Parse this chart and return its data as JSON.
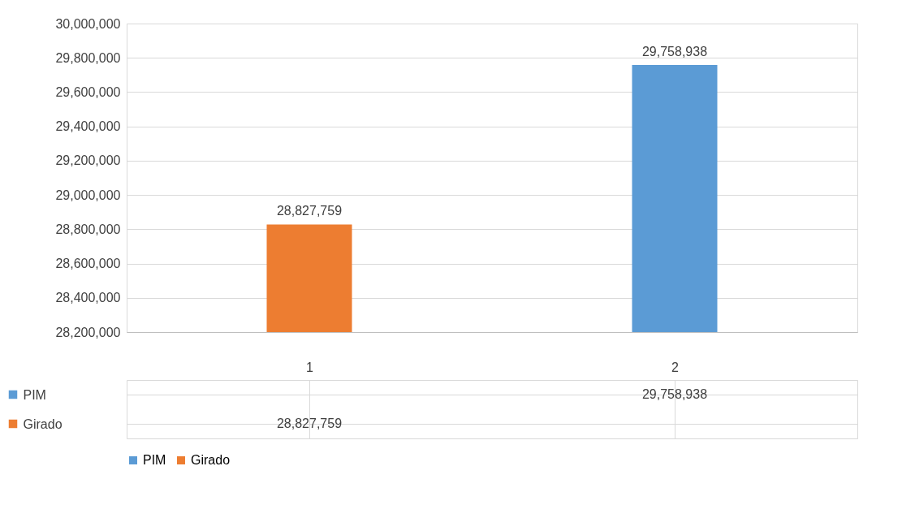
{
  "chart_data": {
    "type": "bar",
    "categories": [
      "1",
      "2"
    ],
    "series": [
      {
        "name": "PIM",
        "color": "#5b9bd5",
        "values": [
          null,
          29758938
        ],
        "value_labels": [
          null,
          "29,758,938"
        ]
      },
      {
        "name": "Girado",
        "color": "#ed7d31",
        "values": [
          28827759,
          null
        ],
        "value_labels": [
          "28,827,759",
          null
        ]
      }
    ],
    "ylim": [
      28200000,
      30000000
    ],
    "yticks": [
      {
        "value": 28200000,
        "label": "28,200,000"
      },
      {
        "value": 28400000,
        "label": "28,400,000"
      },
      {
        "value": 28600000,
        "label": "28,600,000"
      },
      {
        "value": 28800000,
        "label": "28,800,000"
      },
      {
        "value": 29000000,
        "label": "29,000,000"
      },
      {
        "value": 29200000,
        "label": "29,200,000"
      },
      {
        "value": 29400000,
        "label": "29,400,000"
      },
      {
        "value": 29600000,
        "label": "29,600,000"
      },
      {
        "value": 29800000,
        "label": "29,800,000"
      },
      {
        "value": 30000000,
        "label": "30,000,000"
      }
    ],
    "grid": "y",
    "legend": "bottom"
  }
}
